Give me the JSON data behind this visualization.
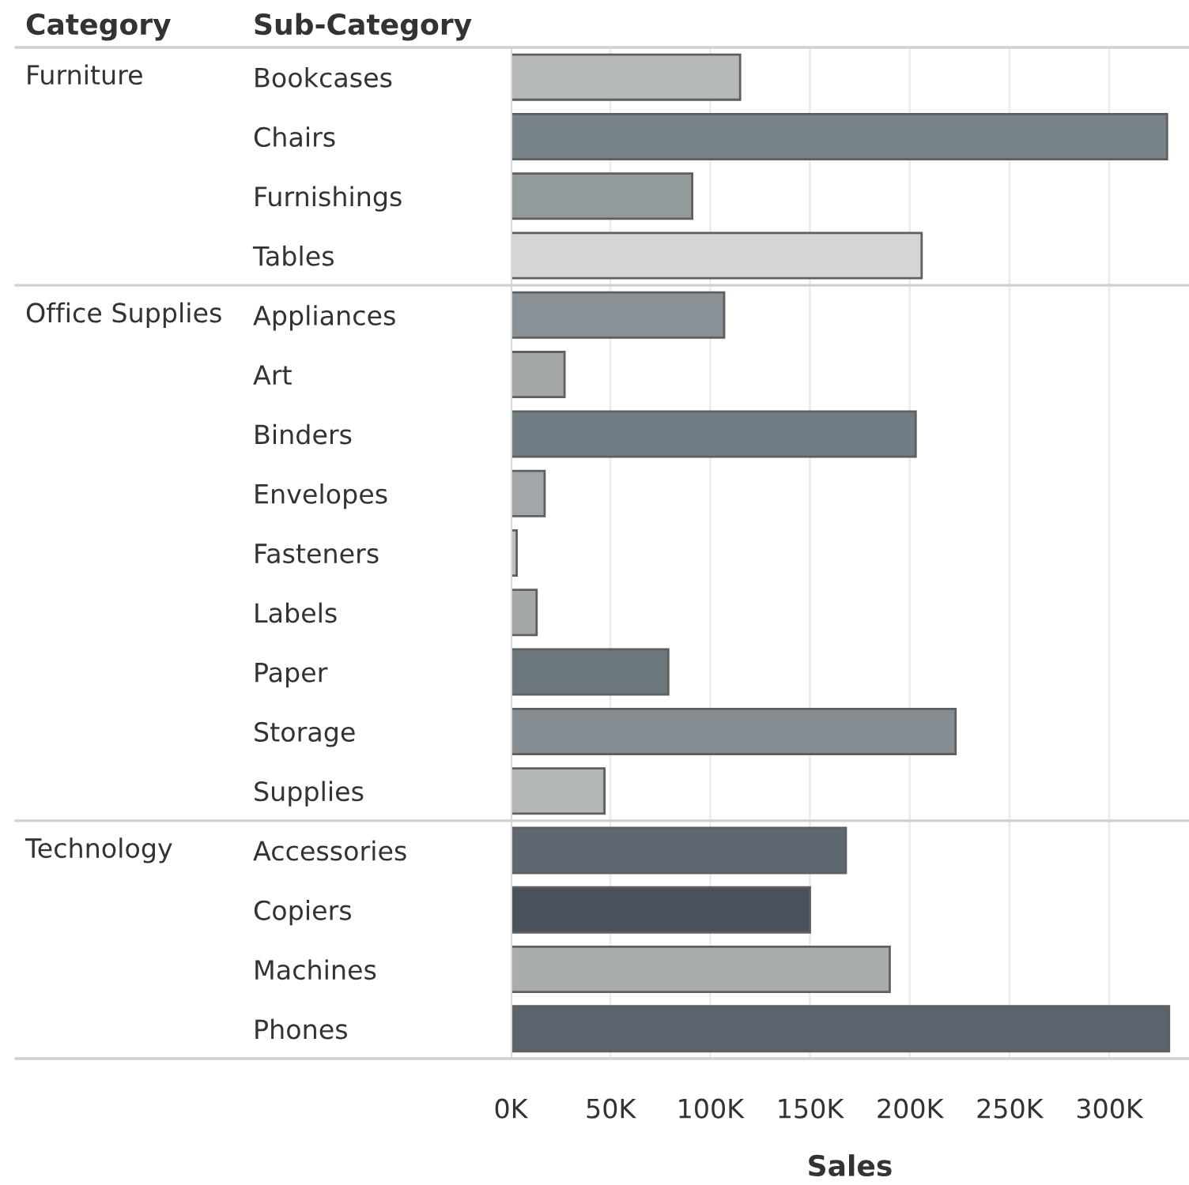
{
  "chart_data": {
    "type": "bar",
    "orientation": "horizontal",
    "xlabel": "Sales",
    "ylabel": "Sub-Category",
    "categories": [
      "Bookcases",
      "Chairs",
      "Furnishings",
      "Tables",
      "Appliances",
      "Art",
      "Binders",
      "Envelopes",
      "Fasteners",
      "Labels",
      "Paper",
      "Storage",
      "Supplies",
      "Accessories",
      "Copiers",
      "Machines",
      "Phones"
    ],
    "values": [
      115000,
      329000,
      91000,
      206000,
      107000,
      27000,
      203000,
      17000,
      3000,
      13000,
      79000,
      223000,
      47000,
      168000,
      150000,
      190000,
      330000
    ],
    "colors": [
      "#b6b9ba",
      "#79838a",
      "#939a9b",
      "#d5d5d5",
      "#8a9197",
      "#a4a8a9",
      "#717d85",
      "#a3a7a9",
      "#c0c0c0",
      "#a4a8a9",
      "#6b767d",
      "#868d93",
      "#b3b6b7",
      "#5f6870",
      "#4a505c",
      "#a8acad",
      "#5b636d"
    ],
    "xlim": [
      0,
      340000
    ],
    "xticks": [
      {
        "value": 0,
        "label": "0K"
      },
      {
        "value": 50000,
        "label": "50K"
      },
      {
        "value": 100000,
        "label": "100K"
      },
      {
        "value": 150000,
        "label": "150K"
      },
      {
        "value": 200000,
        "label": "200K"
      },
      {
        "value": 250000,
        "label": "250K"
      },
      {
        "value": 300000,
        "label": "300K"
      }
    ],
    "grid": "x",
    "annotations": [
      "Category",
      "Furniture",
      "Office Supplies",
      "Technology"
    ]
  }
}
